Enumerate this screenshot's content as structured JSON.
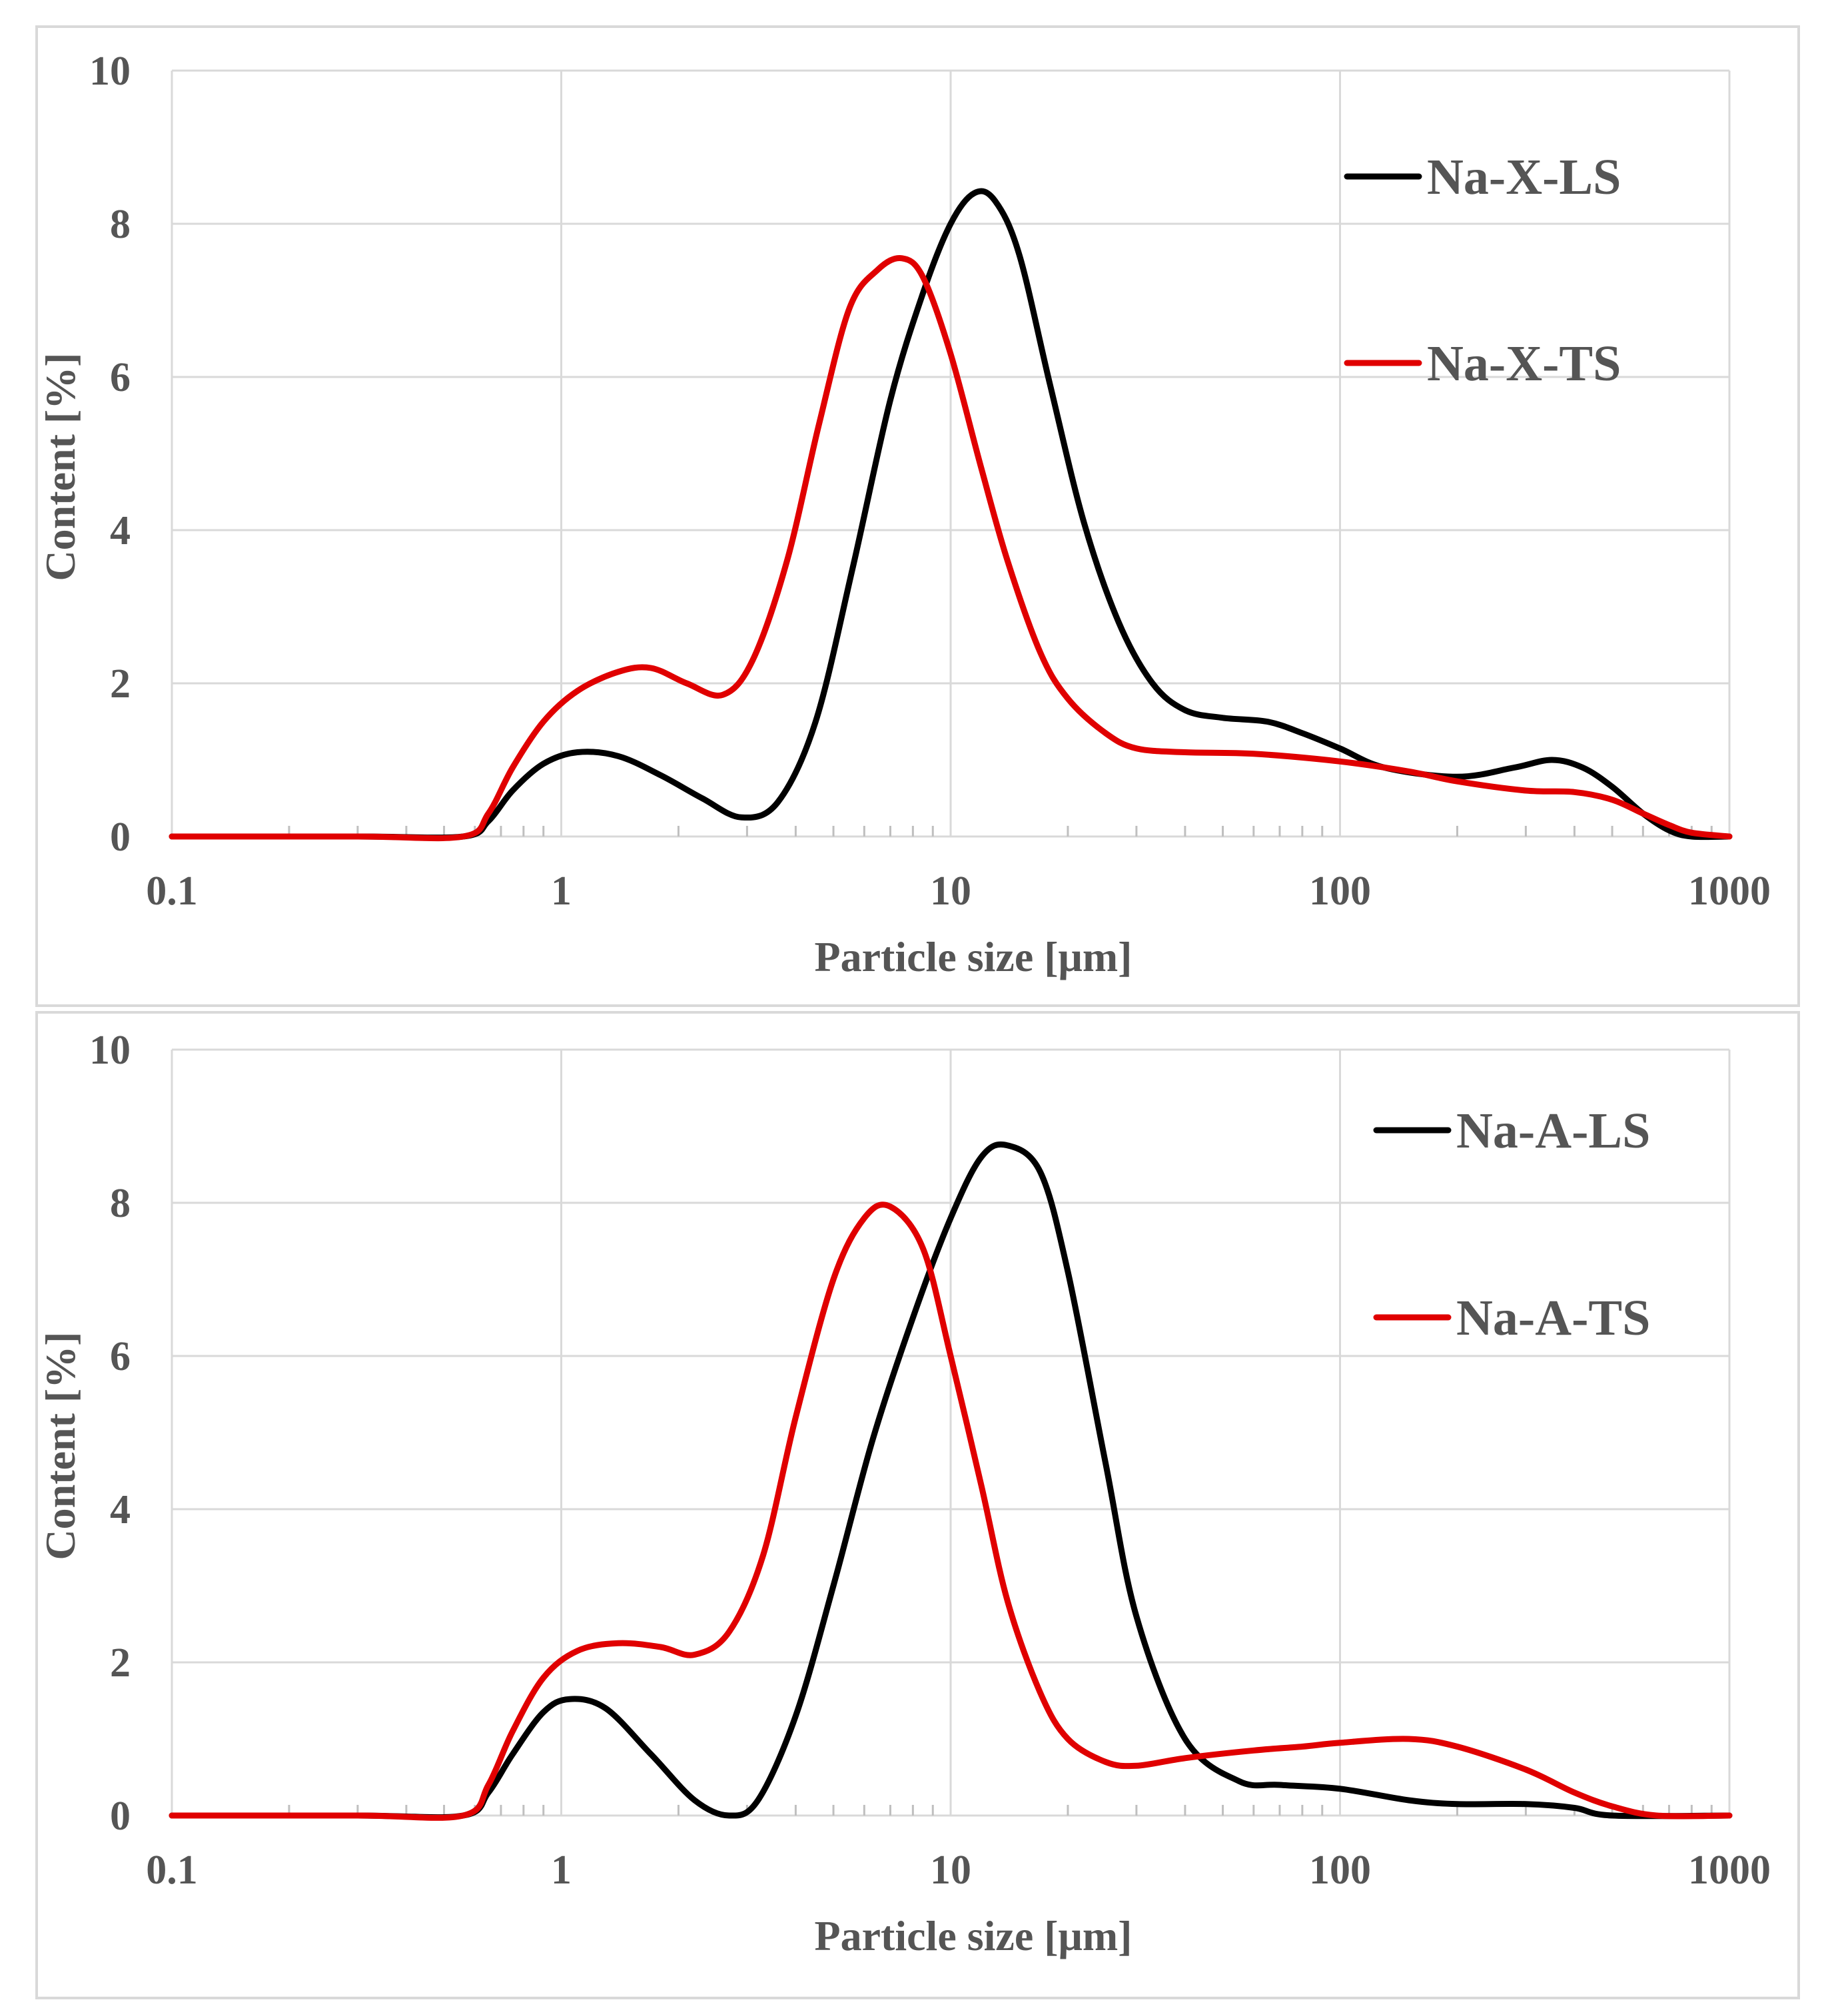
{
  "chart_data": [
    {
      "type": "line",
      "xscale": "log",
      "xlabel": "Particle size [μm]",
      "ylabel": "Content [%]",
      "xlim": [
        0.1,
        1000
      ],
      "ylim": [
        0,
        10
      ],
      "xticks": [
        0.1,
        1,
        10,
        100,
        1000
      ],
      "xtick_labels": [
        "0.1",
        "1",
        "10",
        "100",
        "1000"
      ],
      "yticks": [
        0,
        2,
        4,
        6,
        8,
        10
      ],
      "ytick_labels": [
        "0",
        "2",
        "4",
        "6",
        "8",
        "10"
      ],
      "grid": true,
      "legend_position": "top-right",
      "series": [
        {
          "name": "Na-X-LS",
          "color": "#000000",
          "x": [
            0.1,
            0.3,
            0.56,
            0.65,
            0.75,
            0.9,
            1.1,
            1.4,
            1.8,
            2.3,
            2.9,
            3.6,
            4.5,
            5.6,
            7,
            8.5,
            10,
            11.5,
            13,
            15,
            18,
            22,
            27,
            33,
            40,
            50,
            65,
            80,
            100,
            130,
            200,
            280,
            350,
            420,
            500,
            600,
            700,
            800,
            1000
          ],
          "y": [
            0,
            0,
            0,
            0.2,
            0.6,
            0.95,
            1.1,
            1.05,
            0.8,
            0.5,
            0.25,
            0.45,
            1.5,
            3.5,
            5.7,
            7.1,
            8.0,
            8.4,
            8.3,
            7.6,
            5.9,
            4.1,
            2.8,
            2.0,
            1.65,
            1.55,
            1.5,
            1.35,
            1.15,
            0.9,
            0.78,
            0.9,
            1.0,
            0.9,
            0.65,
            0.3,
            0.08,
            0,
            0
          ]
        },
        {
          "name": "Na-X-TS",
          "color": "#e00000",
          "x": [
            0.1,
            0.3,
            0.56,
            0.65,
            0.75,
            0.9,
            1.1,
            1.4,
            1.7,
            2.1,
            2.6,
            3.1,
            3.8,
            4.6,
            5.5,
            6.5,
            7.5,
            8.5,
            10,
            12,
            14,
            17,
            20,
            25,
            30,
            40,
            60,
            100,
            150,
            200,
            300,
            400,
            500,
            600,
            700,
            800,
            1000
          ],
          "y": [
            0,
            0,
            0,
            0.3,
            0.9,
            1.5,
            1.9,
            2.15,
            2.2,
            2.0,
            1.85,
            2.3,
            3.6,
            5.4,
            6.9,
            7.4,
            7.55,
            7.3,
            6.3,
            4.8,
            3.6,
            2.4,
            1.8,
            1.35,
            1.15,
            1.1,
            1.08,
            0.98,
            0.85,
            0.72,
            0.6,
            0.58,
            0.48,
            0.3,
            0.15,
            0.05,
            0
          ]
        }
      ]
    },
    {
      "type": "line",
      "xscale": "log",
      "xlabel": "Particle size [μm]",
      "ylabel": "Content [%]",
      "xlim": [
        0.1,
        1000
      ],
      "ylim": [
        0,
        10
      ],
      "xticks": [
        0.1,
        1,
        10,
        100,
        1000
      ],
      "xtick_labels": [
        "0.1",
        "1",
        "10",
        "100",
        "1000"
      ],
      "yticks": [
        0,
        2,
        4,
        6,
        8,
        10
      ],
      "ytick_labels": [
        "0",
        "2",
        "4",
        "6",
        "8",
        "10"
      ],
      "grid": true,
      "legend_position": "top-right",
      "series": [
        {
          "name": "Na-A-LS",
          "color": "#000000",
          "x": [
            0.1,
            0.3,
            0.56,
            0.65,
            0.75,
            0.9,
            1.05,
            1.3,
            1.7,
            2.2,
            2.7,
            3.2,
            4,
            5,
            6.3,
            8,
            10,
            12,
            14,
            17,
            20,
            25,
            30,
            40,
            55,
            70,
            100,
            150,
            200,
            300,
            400,
            500,
            1000
          ],
          "y": [
            0,
            0,
            0,
            0.3,
            0.8,
            1.35,
            1.52,
            1.4,
            0.8,
            0.2,
            0,
            0.2,
            1.3,
            3.0,
            4.9,
            6.5,
            7.8,
            8.6,
            8.75,
            8.4,
            7.1,
            4.6,
            2.6,
            1.0,
            0.45,
            0.4,
            0.35,
            0.2,
            0.15,
            0.15,
            0.1,
            0,
            0
          ]
        },
        {
          "name": "Na-A-TS",
          "color": "#e00000",
          "x": [
            0.1,
            0.3,
            0.56,
            0.65,
            0.75,
            0.9,
            1.1,
            1.4,
            1.8,
            2.2,
            2.7,
            3.3,
            4,
            5,
            6,
            7,
            8.5,
            10,
            12,
            14,
            17,
            20,
            25,
            30,
            40,
            60,
            80,
            100,
            150,
            200,
            300,
            400,
            500,
            650,
            1000
          ],
          "y": [
            0,
            0,
            0,
            0.4,
            1.1,
            1.8,
            2.15,
            2.25,
            2.2,
            2.1,
            2.4,
            3.4,
            5.2,
            7.0,
            7.8,
            7.95,
            7.4,
            6.0,
            4.3,
            2.8,
            1.6,
            1.0,
            0.7,
            0.65,
            0.75,
            0.85,
            0.9,
            0.95,
            1.0,
            0.9,
            0.6,
            0.3,
            0.12,
            0,
            0
          ]
        }
      ]
    }
  ]
}
